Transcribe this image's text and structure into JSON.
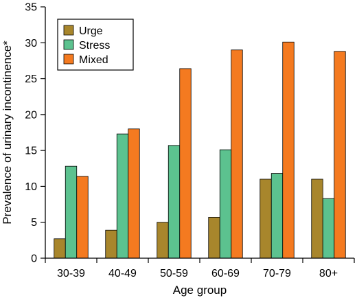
{
  "chart_data": {
    "type": "bar",
    "categories": [
      "30-39",
      "40-49",
      "50-59",
      "60-69",
      "70-79",
      "80+"
    ],
    "series": [
      {
        "name": "Urge",
        "color": "#a8862c",
        "values": [
          2.7,
          3.9,
          5.0,
          5.7,
          11.0,
          11.0
        ]
      },
      {
        "name": "Stress",
        "color": "#5cc28f",
        "values": [
          12.8,
          17.3,
          15.7,
          15.1,
          11.8,
          8.3
        ]
      },
      {
        "name": "Mixed",
        "color": "#f47a20",
        "values": [
          11.4,
          18.0,
          26.4,
          29.0,
          30.1,
          28.8
        ]
      }
    ],
    "xlabel": "Age group",
    "ylabel": "Prevalence of urinary incontinence*",
    "ylim": [
      0,
      35
    ],
    "yticks": [
      0,
      5,
      10,
      15,
      20,
      25,
      30,
      35
    ],
    "grid": false,
    "legend_position": "top-left"
  }
}
